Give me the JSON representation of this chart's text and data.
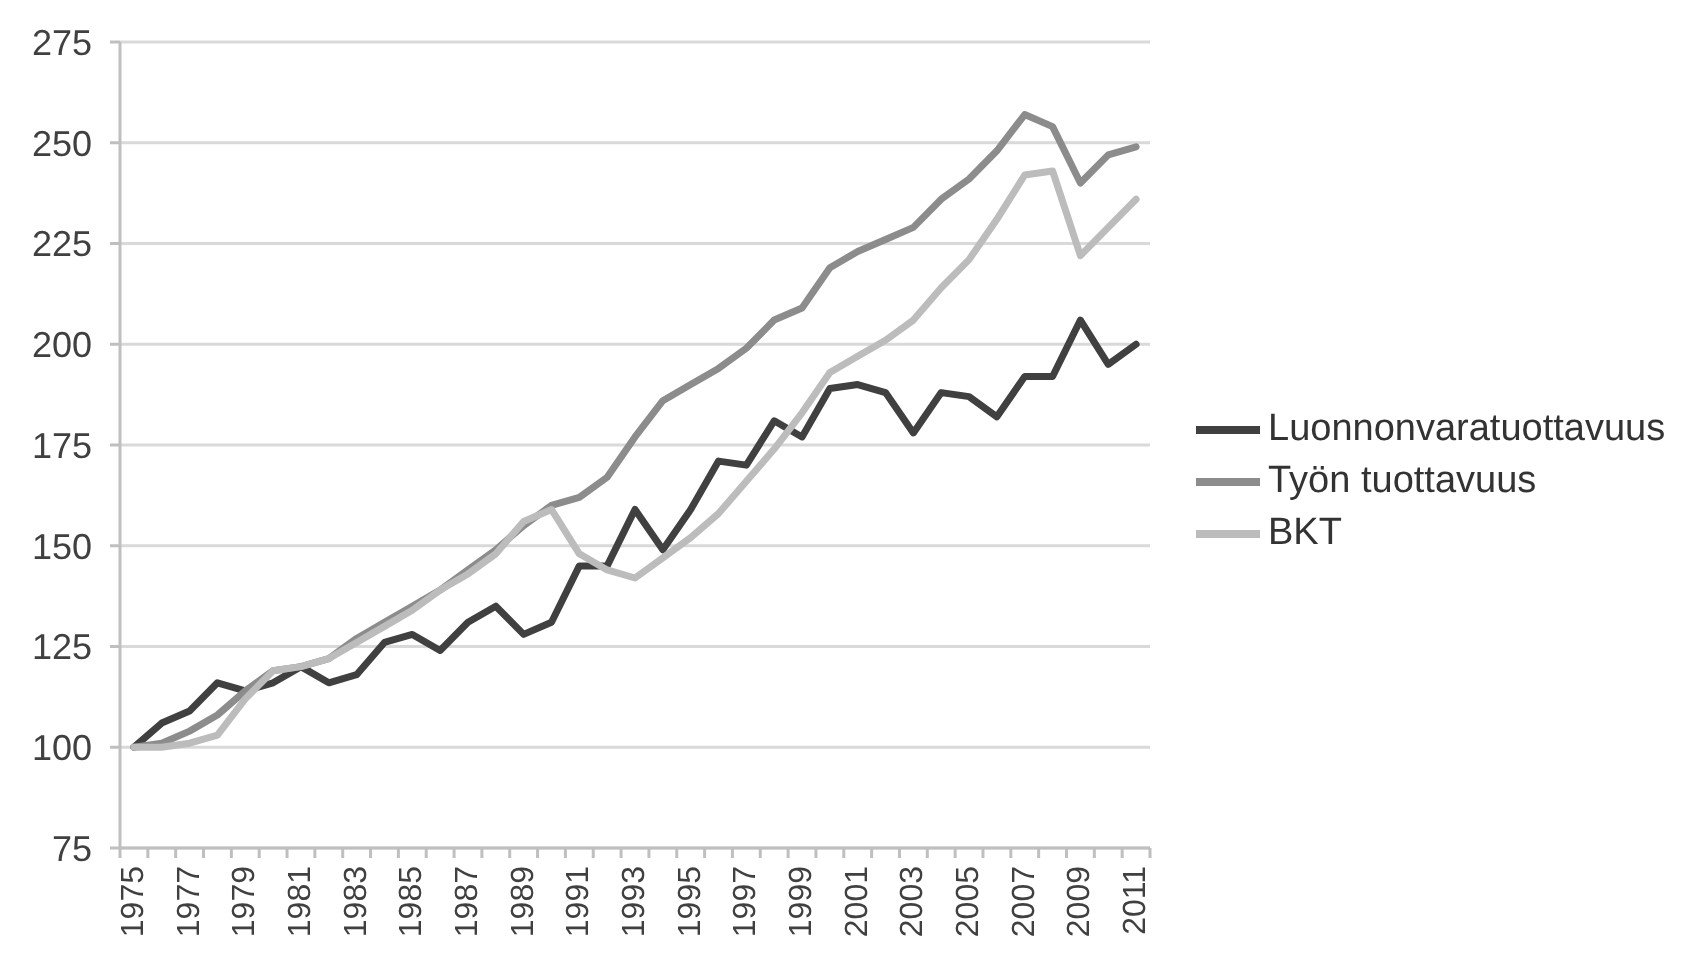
{
  "chart_data": {
    "type": "line",
    "categories": [
      "1975",
      null,
      "1977",
      null,
      "1979",
      null,
      "1981",
      null,
      "1983",
      null,
      "1985",
      null,
      "1987",
      null,
      "1989",
      null,
      "1991",
      null,
      "1993",
      null,
      "1995",
      null,
      "1997",
      null,
      "1999",
      null,
      "2001",
      null,
      "2003",
      null,
      "2005",
      null,
      "2007",
      null,
      "2009",
      null,
      "2011"
    ],
    "series": [
      {
        "name": "Luonnonvaratuottavuus",
        "color": "#404040",
        "values": [
          100,
          106,
          109,
          116,
          114,
          116,
          120,
          116,
          118,
          126,
          128,
          124,
          131,
          135,
          128,
          131,
          145,
          145,
          159,
          149,
          159,
          171,
          170,
          181,
          177,
          189,
          190,
          188,
          178,
          188,
          187,
          182,
          192,
          192,
          206,
          195,
          200
        ]
      },
      {
        "name": "Työn tuottavuus",
        "color": "#8c8c8c",
        "values": [
          100,
          101,
          104,
          108,
          114,
          119,
          120,
          122,
          127,
          131,
          135,
          139,
          144,
          149,
          155,
          160,
          162,
          167,
          177,
          186,
          190,
          194,
          199,
          206,
          209,
          219,
          223,
          226,
          229,
          236,
          241,
          248,
          257,
          254,
          240,
          247,
          249
        ]
      },
      {
        "name": "BKT",
        "color": "#bcbcbc",
        "values": [
          100,
          100,
          101,
          103,
          112,
          119,
          120,
          122,
          126,
          130,
          134,
          139,
          143,
          148,
          156,
          159,
          148,
          144,
          142,
          147,
          152,
          158,
          166,
          174,
          183,
          193,
          197,
          201,
          206,
          214,
          221,
          231,
          242,
          243,
          222,
          229,
          236
        ]
      }
    ],
    "ylim": [
      75,
      275
    ],
    "yticks": [
      75,
      100,
      125,
      150,
      175,
      200,
      225,
      250,
      275
    ],
    "grid": "y",
    "legend": "right"
  }
}
